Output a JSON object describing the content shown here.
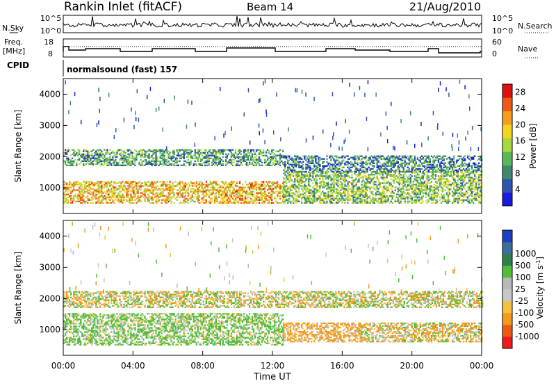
{
  "header": {
    "station": "Rankin Inlet (fitACF)",
    "beam": "Beam 14",
    "date": "21/Aug/2010"
  },
  "top_panels": {
    "nsky_label": "N.Sky",
    "nsky_ticks": [
      "10^5",
      "10^0"
    ],
    "nsearch_label": "N.Search",
    "nsearch_ticks": [
      "10^5",
      "10^0"
    ],
    "freq_label_1": "Freq.",
    "freq_label_2": "[MHz]",
    "freq_ticks": [
      "18",
      "8"
    ],
    "nave_label": "Nave",
    "nave_ticks": [
      "60",
      "0"
    ],
    "cpid_label": "CPID",
    "cpid_value": "normalsound (fast) 157"
  },
  "colors": {
    "power": [
      "#1a1ae0",
      "#2b55b0",
      "#3f8a6c",
      "#59b85a",
      "#a6d93a",
      "#f4d41c",
      "#f39f1d",
      "#ee5a16",
      "#e01010"
    ],
    "velocity": [
      "#ef1a1a",
      "#f05a10",
      "#f59a18",
      "#f5c040",
      "#c8c8c8",
      "#b9b9b9",
      "#4fbf3a",
      "#2f7f4c",
      "#3a6f9a",
      "#1c3fc4"
    ]
  },
  "chart_data": [
    {
      "type": "heatmap",
      "name": "power",
      "xlabel": "",
      "ylabel": "Slant Range [km]",
      "xlim": [
        "00:00",
        "24:00"
      ],
      "ylim": [
        180,
        4500
      ],
      "y_ticks": [
        1000,
        2000,
        3000,
        4000
      ],
      "colorbar": {
        "label": "Power [dB]",
        "ticks": [
          4,
          8,
          12,
          16,
          20,
          24,
          28
        ],
        "range": [
          0,
          30
        ]
      },
      "echo_bands": [
        {
          "t_start": 0.0,
          "t_end": 12.6,
          "range_start": 500,
          "range_end": 1200,
          "mean_value": 20
        },
        {
          "t_start": 0.0,
          "t_end": 12.6,
          "range_start": 1700,
          "range_end": 2200,
          "mean_value": 10
        },
        {
          "t_start": 12.6,
          "t_end": 24.0,
          "range_start": 500,
          "range_end": 1500,
          "mean_value": 13
        },
        {
          "t_start": 12.6,
          "t_end": 24.0,
          "range_start": 1500,
          "range_end": 2000,
          "mean_value": 8
        }
      ]
    },
    {
      "type": "heatmap",
      "name": "velocity",
      "xlabel": "Time UT",
      "ylabel": "Slant Range [km]",
      "xlim": [
        "00:00",
        "24:00"
      ],
      "x_ticks": [
        "00:00",
        "04:00",
        "08:00",
        "12:00",
        "16:00",
        "20:00",
        "00:00"
      ],
      "ylim": [
        180,
        4500
      ],
      "y_ticks": [
        1000,
        2000,
        3000,
        4000
      ],
      "colorbar": {
        "label_main": "Velocity [m s",
        "label_sup": "-1",
        "label_end": "]",
        "ticks": [
          1000,
          500,
          100,
          25,
          -25,
          -100,
          -500,
          -1000
        ]
      },
      "echo_bands": [
        {
          "t_start": 0.0,
          "t_end": 12.6,
          "range_start": 500,
          "range_end": 1500,
          "mean_value": 150
        },
        {
          "t_start": 0.0,
          "t_end": 24.0,
          "range_start": 1700,
          "range_end": 2200,
          "mean_value": 0
        },
        {
          "t_start": 12.6,
          "t_end": 17.0,
          "range_start": 600,
          "range_end": 1200,
          "mean_value": -150
        },
        {
          "t_start": 17.0,
          "t_end": 24.0,
          "range_start": 600,
          "range_end": 1200,
          "mean_value": -50
        }
      ]
    }
  ]
}
